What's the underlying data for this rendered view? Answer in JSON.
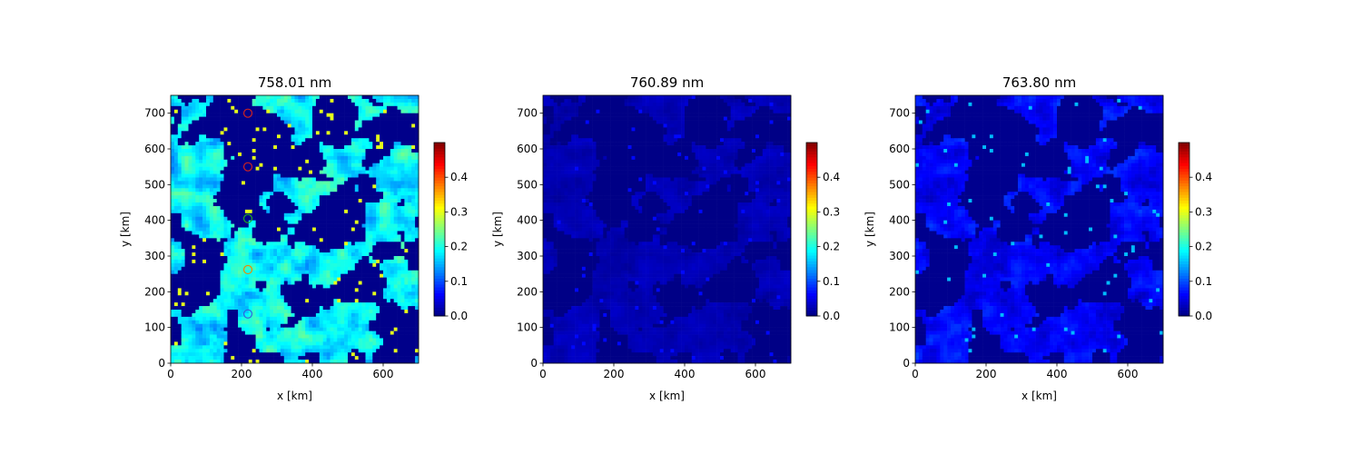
{
  "chart_data": [
    {
      "type": "heatmap",
      "title": "758.01 nm",
      "xlabel": "x [km]",
      "ylabel": "y [km]",
      "xlim": [
        0,
        700
      ],
      "ylim": [
        0,
        750
      ],
      "xticks": [
        0,
        200,
        400,
        600
      ],
      "yticks": [
        0,
        100,
        200,
        300,
        400,
        500,
        600,
        700
      ],
      "colormap": "jet",
      "colorbar": {
        "range": [
          0,
          0.5
        ],
        "ticks": [
          0.0,
          0.1,
          0.2,
          0.3,
          0.4
        ],
        "tick_labels": [
          "0.0",
          "0.1",
          "0.2",
          "0.3",
          "0.4"
        ]
      },
      "typical_level": 0.13,
      "markers": [
        {
          "x": 218,
          "y": 700,
          "color": "#cc2222"
        },
        {
          "x": 218,
          "y": 550,
          "color": "#cc2222"
        },
        {
          "x": 218,
          "y": 405,
          "color": "#22aa22"
        },
        {
          "x": 218,
          "y": 262,
          "color": "#ee8800"
        },
        {
          "x": 218,
          "y": 138,
          "color": "#3366dd"
        }
      ]
    },
    {
      "type": "heatmap",
      "title": "760.89 nm",
      "xlabel": "x [km]",
      "ylabel": "y [km]",
      "xlim": [
        0,
        700
      ],
      "ylim": [
        0,
        750
      ],
      "xticks": [
        0,
        200,
        400,
        600
      ],
      "yticks": [
        0,
        100,
        200,
        300,
        400,
        500,
        600,
        700
      ],
      "colormap": "jet",
      "colorbar": {
        "range": [
          0,
          0.5
        ],
        "ticks": [
          0.0,
          0.1,
          0.2,
          0.3,
          0.4
        ],
        "tick_labels": [
          "0.0",
          "0.1",
          "0.2",
          "0.3",
          "0.4"
        ]
      },
      "typical_level": 0.03,
      "markers": []
    },
    {
      "type": "heatmap",
      "title": "763.80 nm",
      "xlabel": "x [km]",
      "ylabel": "y [km]",
      "xlim": [
        0,
        700
      ],
      "ylim": [
        0,
        750
      ],
      "xticks": [
        0,
        200,
        400,
        600
      ],
      "yticks": [
        0,
        100,
        200,
        300,
        400,
        500,
        600,
        700
      ],
      "colormap": "jet",
      "colorbar": {
        "range": [
          0,
          0.5
        ],
        "ticks": [
          0.0,
          0.1,
          0.2,
          0.3,
          0.4
        ],
        "tick_labels": [
          "0.0",
          "0.1",
          "0.2",
          "0.3",
          "0.4"
        ]
      },
      "typical_level": 0.07,
      "markers": []
    }
  ]
}
